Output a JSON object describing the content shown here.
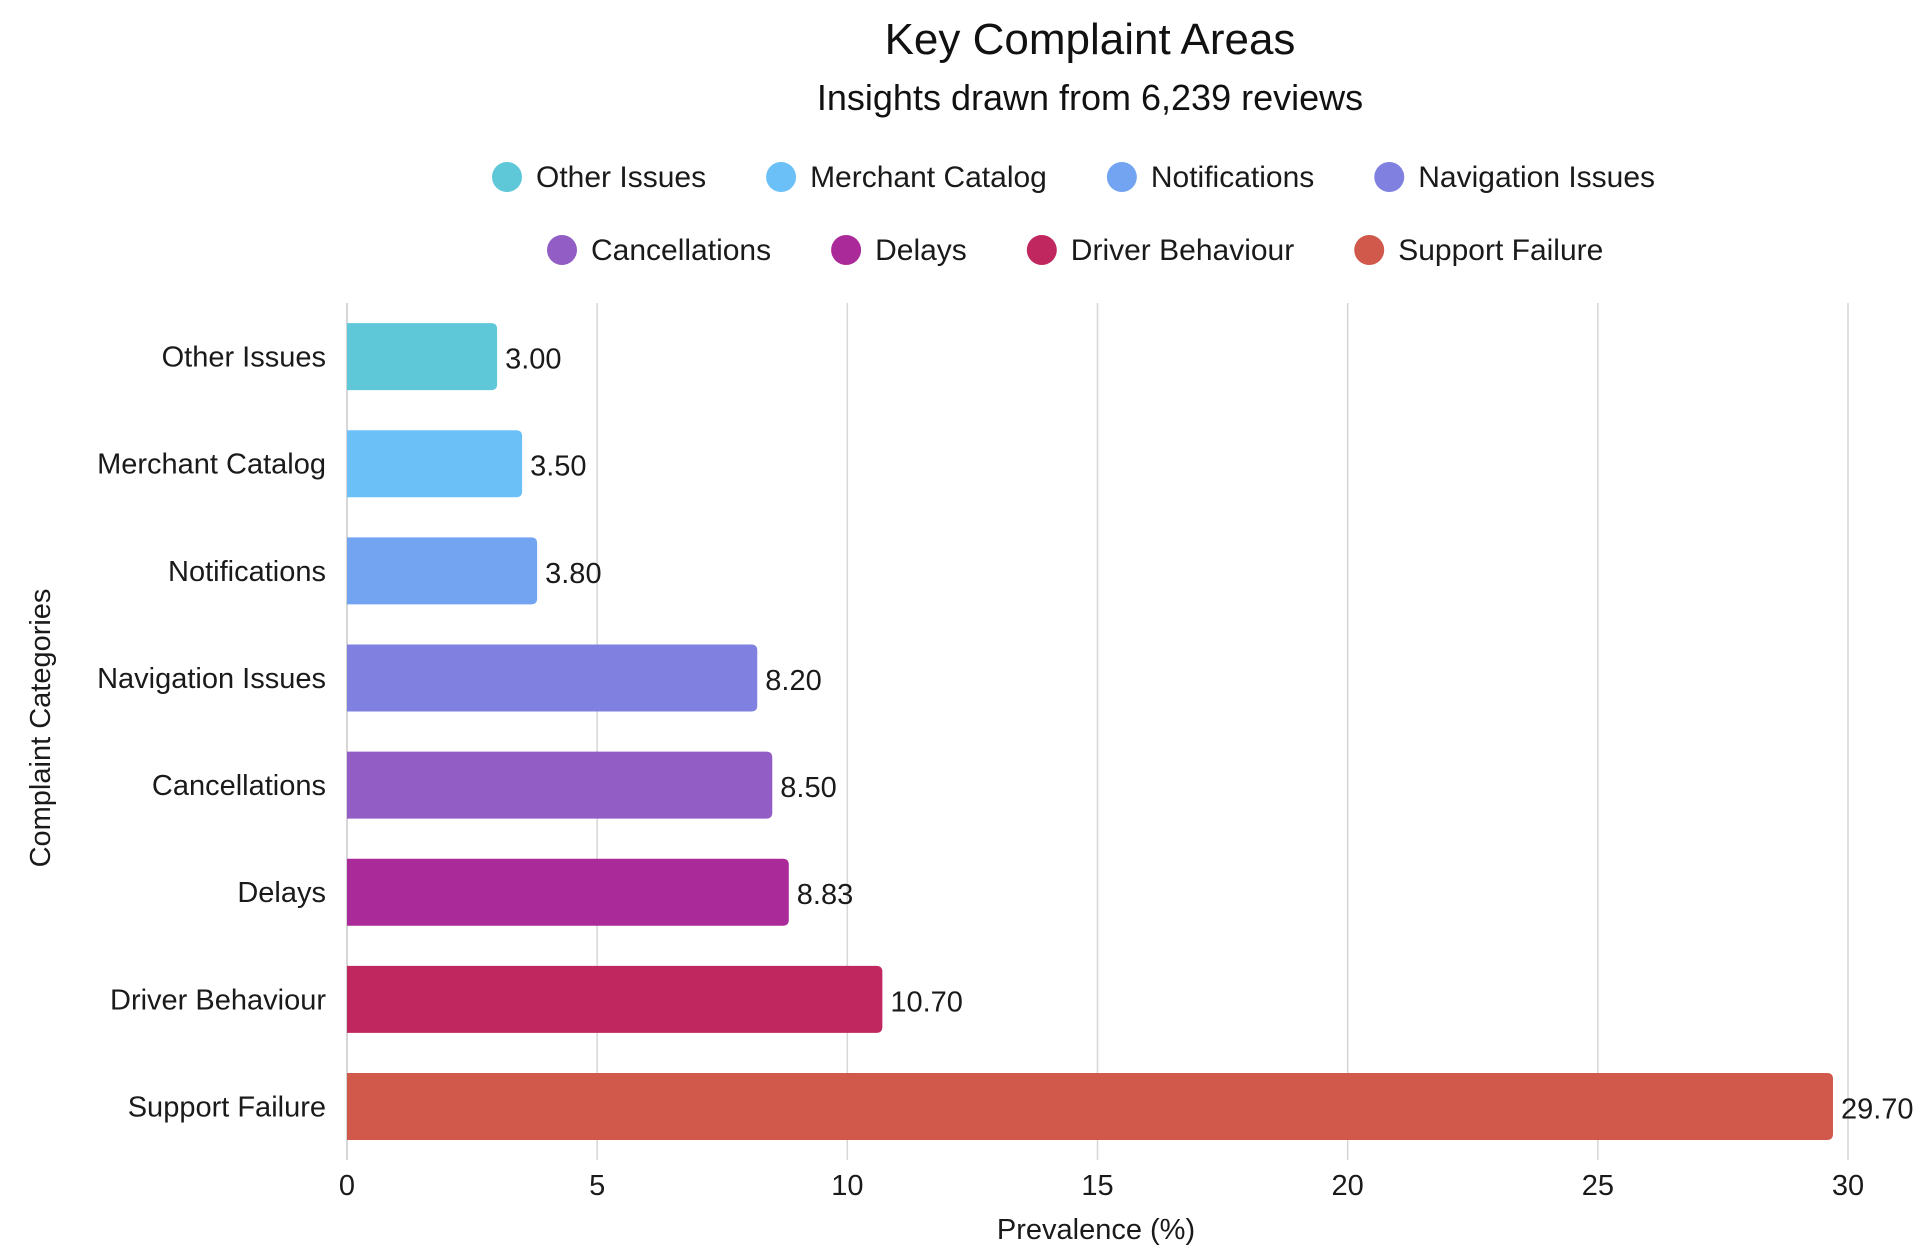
{
  "chart_data": {
    "type": "bar",
    "orientation": "horizontal",
    "title": "Key Complaint Areas",
    "subtitle": "Insights drawn from 6,239 reviews",
    "xlabel": "Prevalence (%)",
    "ylabel": "Complaint Categories",
    "xlim": [
      0,
      30
    ],
    "xticks": [
      "0",
      "5",
      "10",
      "15",
      "20",
      "25",
      "30"
    ],
    "grid": true,
    "legend_position": "top-center",
    "categories": [
      "Other Issues",
      "Merchant Catalog",
      "Notifications",
      "Navigation Issues",
      "Cancellations",
      "Delays",
      "Driver Behaviour",
      "Support Failure"
    ],
    "values": [
      3.0,
      3.5,
      3.8,
      8.2,
      8.5,
      8.83,
      10.7,
      29.7
    ],
    "value_labels": [
      "3.00",
      "3.50",
      "3.80",
      "8.20",
      "8.50",
      "8.83",
      "10.70",
      "29.70"
    ],
    "colors": [
      "#5ec8d8",
      "#6bc0f7",
      "#73a4f2",
      "#8080e0",
      "#925ec6",
      "#ab2a99",
      "#bf275e",
      "#d0594c"
    ]
  }
}
